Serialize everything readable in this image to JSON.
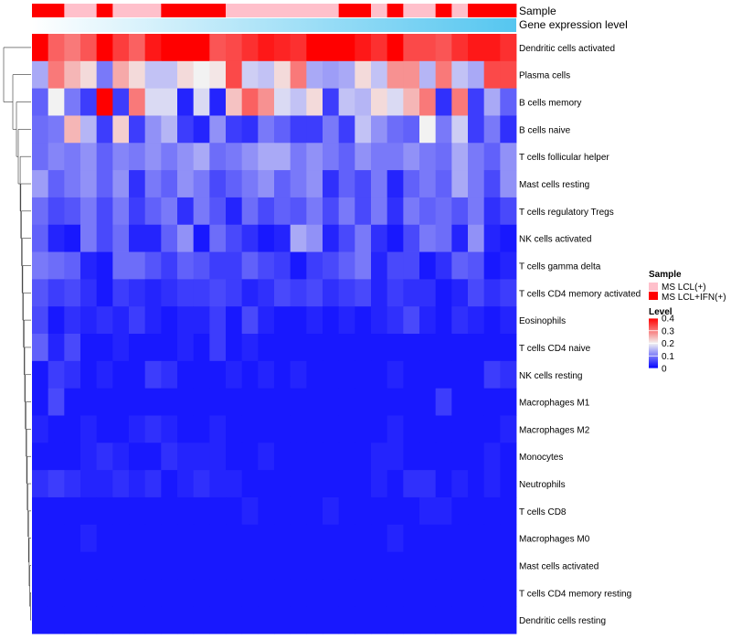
{
  "chart_data": {
    "type": "heatmap",
    "annotation_tracks": [
      "Sample",
      "Gene expression level"
    ],
    "n_samples": 30,
    "sample_groups": [
      "IFN",
      "IFN",
      "LCL",
      "LCL",
      "IFN",
      "LCL",
      "LCL",
      "LCL",
      "IFN",
      "IFN",
      "IFN",
      "IFN",
      "LCL",
      "LCL",
      "LCL",
      "LCL",
      "LCL",
      "LCL",
      "LCL",
      "IFN",
      "IFN",
      "LCL",
      "IFN",
      "LCL",
      "LCL",
      "IFN",
      "LCL",
      "IFN",
      "IFN",
      "IFN"
    ],
    "row_labels": [
      "Dendritic cells activated",
      "Plasma cells",
      "B cells memory",
      "B cells naive",
      "T cells follicular helper",
      "Mast cells resting",
      "T cells regulatory  Tregs",
      "NK cells activated",
      "T cells gamma delta",
      "T cells CD4 memory activated",
      "Eosinophils",
      "T cells CD4 naive",
      "NK cells resting",
      "Macrophages M1",
      "Macrophages M2",
      "Monocytes",
      "Neutrophils",
      "T cells CD8",
      "Macrophages M0",
      "Mast cells activated",
      "T cells CD4 memory resting",
      "Dendritic cells resting"
    ],
    "values": [
      [
        0.4,
        0.32,
        0.3,
        0.33,
        0.4,
        0.35,
        0.32,
        0.38,
        0.4,
        0.4,
        0.4,
        0.33,
        0.34,
        0.36,
        0.38,
        0.37,
        0.36,
        0.4,
        0.4,
        0.4,
        0.38,
        0.36,
        0.4,
        0.34,
        0.34,
        0.33,
        0.36,
        0.38,
        0.38,
        0.36
      ],
      [
        0.14,
        0.3,
        0.25,
        0.22,
        0.1,
        0.26,
        0.22,
        0.16,
        0.16,
        0.22,
        0.2,
        0.21,
        0.34,
        0.17,
        0.16,
        0.22,
        0.3,
        0.14,
        0.13,
        0.14,
        0.22,
        0.16,
        0.28,
        0.28,
        0.15,
        0.3,
        0.16,
        0.14,
        0.34,
        0.34
      ],
      [
        0.08,
        0.2,
        0.1,
        0.05,
        0.4,
        0.05,
        0.3,
        0.18,
        0.18,
        0.03,
        0.18,
        0.03,
        0.24,
        0.32,
        0.28,
        0.18,
        0.16,
        0.22,
        0.05,
        0.16,
        0.15,
        0.22,
        0.18,
        0.25,
        0.3,
        0.04,
        0.3,
        0.05,
        0.14,
        0.08
      ],
      [
        0.09,
        0.1,
        0.25,
        0.15,
        0.05,
        0.23,
        0.05,
        0.12,
        0.15,
        0.05,
        0.03,
        0.12,
        0.05,
        0.04,
        0.1,
        0.08,
        0.05,
        0.05,
        0.1,
        0.05,
        0.16,
        0.12,
        0.09,
        0.08,
        0.2,
        0.1,
        0.17,
        0.05,
        0.1,
        0.04
      ],
      [
        0.09,
        0.11,
        0.1,
        0.12,
        0.08,
        0.11,
        0.1,
        0.12,
        0.1,
        0.12,
        0.14,
        0.09,
        0.1,
        0.12,
        0.14,
        0.14,
        0.1,
        0.12,
        0.1,
        0.08,
        0.12,
        0.1,
        0.1,
        0.12,
        0.1,
        0.09,
        0.14,
        0.1,
        0.08,
        0.12
      ],
      [
        0.13,
        0.08,
        0.1,
        0.12,
        0.08,
        0.12,
        0.04,
        0.1,
        0.08,
        0.12,
        0.1,
        0.06,
        0.08,
        0.1,
        0.12,
        0.08,
        0.1,
        0.12,
        0.04,
        0.08,
        0.06,
        0.1,
        0.03,
        0.08,
        0.1,
        0.08,
        0.14,
        0.1,
        0.06,
        0.12
      ],
      [
        0.09,
        0.06,
        0.07,
        0.1,
        0.06,
        0.1,
        0.05,
        0.08,
        0.1,
        0.04,
        0.1,
        0.07,
        0.03,
        0.09,
        0.06,
        0.08,
        0.07,
        0.1,
        0.06,
        0.1,
        0.06,
        0.1,
        0.04,
        0.1,
        0.08,
        0.09,
        0.07,
        0.1,
        0.04,
        0.06
      ],
      [
        0.08,
        0.03,
        0.02,
        0.1,
        0.06,
        0.09,
        0.03,
        0.03,
        0.08,
        0.12,
        0.02,
        0.09,
        0.06,
        0.04,
        0.02,
        0.03,
        0.14,
        0.12,
        0.03,
        0.06,
        0.1,
        0.04,
        0.02,
        0.06,
        0.1,
        0.09,
        0.03,
        0.12,
        0.03,
        0.02
      ],
      [
        0.1,
        0.09,
        0.08,
        0.03,
        0.02,
        0.09,
        0.09,
        0.07,
        0.05,
        0.08,
        0.07,
        0.05,
        0.05,
        0.08,
        0.06,
        0.05,
        0.02,
        0.05,
        0.06,
        0.08,
        0.1,
        0.03,
        0.06,
        0.06,
        0.02,
        0.04,
        0.08,
        0.07,
        0.02,
        0.03
      ],
      [
        0.07,
        0.05,
        0.06,
        0.04,
        0.02,
        0.05,
        0.04,
        0.03,
        0.04,
        0.05,
        0.05,
        0.06,
        0.05,
        0.03,
        0.04,
        0.06,
        0.05,
        0.06,
        0.04,
        0.05,
        0.06,
        0.03,
        0.05,
        0.04,
        0.04,
        0.02,
        0.03,
        0.06,
        0.04,
        0.05
      ],
      [
        0.06,
        0.02,
        0.04,
        0.03,
        0.04,
        0.03,
        0.05,
        0.03,
        0.02,
        0.03,
        0.03,
        0.05,
        0.02,
        0.06,
        0.03,
        0.02,
        0.02,
        0.03,
        0.02,
        0.03,
        0.02,
        0.03,
        0.04,
        0.06,
        0.03,
        0.02,
        0.04,
        0.03,
        0.02,
        0.03
      ],
      [
        0.08,
        0.03,
        0.06,
        0.02,
        0.02,
        0.03,
        0.02,
        0.02,
        0.02,
        0.03,
        0.02,
        0.05,
        0.02,
        0.03,
        0.02,
        0.02,
        0.02,
        0.02,
        0.02,
        0.02,
        0.02,
        0.02,
        0.02,
        0.02,
        0.02,
        0.02,
        0.02,
        0.02,
        0.02,
        0.02
      ],
      [
        0.02,
        0.05,
        0.04,
        0.02,
        0.03,
        0.02,
        0.02,
        0.05,
        0.04,
        0.02,
        0.02,
        0.02,
        0.03,
        0.02,
        0.03,
        0.02,
        0.03,
        0.02,
        0.02,
        0.02,
        0.02,
        0.02,
        0.03,
        0.02,
        0.02,
        0.02,
        0.02,
        0.02,
        0.05,
        0.04
      ],
      [
        0.02,
        0.06,
        0.02,
        0.02,
        0.02,
        0.02,
        0.02,
        0.02,
        0.02,
        0.02,
        0.02,
        0.02,
        0.02,
        0.02,
        0.02,
        0.02,
        0.02,
        0.02,
        0.02,
        0.02,
        0.02,
        0.02,
        0.02,
        0.02,
        0.02,
        0.05,
        0.02,
        0.02,
        0.02,
        0.02
      ],
      [
        0.03,
        0.02,
        0.02,
        0.03,
        0.02,
        0.02,
        0.03,
        0.04,
        0.03,
        0.02,
        0.02,
        0.03,
        0.02,
        0.02,
        0.02,
        0.02,
        0.02,
        0.02,
        0.02,
        0.02,
        0.02,
        0.02,
        0.03,
        0.02,
        0.02,
        0.02,
        0.02,
        0.02,
        0.02,
        0.03
      ],
      [
        0.02,
        0.02,
        0.02,
        0.03,
        0.04,
        0.03,
        0.02,
        0.02,
        0.04,
        0.03,
        0.03,
        0.03,
        0.02,
        0.02,
        0.03,
        0.02,
        0.02,
        0.02,
        0.02,
        0.02,
        0.02,
        0.03,
        0.03,
        0.02,
        0.02,
        0.02,
        0.02,
        0.02,
        0.03,
        0.02
      ],
      [
        0.04,
        0.05,
        0.04,
        0.03,
        0.03,
        0.04,
        0.03,
        0.04,
        0.02,
        0.03,
        0.04,
        0.03,
        0.03,
        0.02,
        0.02,
        0.02,
        0.02,
        0.02,
        0.02,
        0.02,
        0.02,
        0.03,
        0.02,
        0.04,
        0.04,
        0.02,
        0.03,
        0.02,
        0.03,
        0.02
      ],
      [
        0.02,
        0.02,
        0.02,
        0.02,
        0.02,
        0.02,
        0.02,
        0.02,
        0.02,
        0.02,
        0.02,
        0.02,
        0.02,
        0.03,
        0.02,
        0.02,
        0.02,
        0.02,
        0.03,
        0.02,
        0.02,
        0.02,
        0.02,
        0.02,
        0.03,
        0.03,
        0.02,
        0.02,
        0.02,
        0.02
      ],
      [
        0.02,
        0.02,
        0.02,
        0.03,
        0.02,
        0.02,
        0.02,
        0.02,
        0.02,
        0.02,
        0.02,
        0.02,
        0.02,
        0.02,
        0.02,
        0.02,
        0.02,
        0.02,
        0.02,
        0.02,
        0.02,
        0.02,
        0.03,
        0.02,
        0.02,
        0.02,
        0.02,
        0.02,
        0.02,
        0.02
      ],
      [
        0.02,
        0.02,
        0.02,
        0.02,
        0.02,
        0.02,
        0.02,
        0.02,
        0.02,
        0.02,
        0.02,
        0.02,
        0.02,
        0.02,
        0.02,
        0.02,
        0.02,
        0.02,
        0.02,
        0.02,
        0.02,
        0.02,
        0.02,
        0.02,
        0.02,
        0.02,
        0.02,
        0.02,
        0.02,
        0.02
      ],
      [
        0.02,
        0.02,
        0.02,
        0.02,
        0.02,
        0.02,
        0.02,
        0.02,
        0.02,
        0.02,
        0.02,
        0.02,
        0.02,
        0.02,
        0.02,
        0.02,
        0.02,
        0.02,
        0.02,
        0.02,
        0.02,
        0.02,
        0.02,
        0.02,
        0.02,
        0.02,
        0.02,
        0.02,
        0.02,
        0.02
      ],
      [
        0.02,
        0.02,
        0.02,
        0.02,
        0.02,
        0.02,
        0.02,
        0.02,
        0.02,
        0.02,
        0.02,
        0.02,
        0.02,
        0.02,
        0.02,
        0.02,
        0.02,
        0.02,
        0.02,
        0.02,
        0.02,
        0.02,
        0.02,
        0.02,
        0.02,
        0.02,
        0.02,
        0.02,
        0.02,
        0.02
      ]
    ],
    "dendrogram": "rows",
    "legend": {
      "sample": {
        "title": "Sample",
        "entries": [
          {
            "key": "LCL",
            "label": "MS LCL(+)",
            "color": "#ffc0cb"
          },
          {
            "key": "IFN",
            "label": "MS LCL+IFN(+)",
            "color": "#ff0000"
          }
        ]
      },
      "level": {
        "title": "Level",
        "ticks": [
          "0.4",
          "0.3",
          "0.2",
          "0.1",
          "0"
        ],
        "tick_values": [
          0.4,
          0.3,
          0.2,
          0.1,
          0.0
        ],
        "range": [
          0,
          0.4
        ]
      },
      "placement": "right"
    },
    "colors": {
      "low": "#0000ff",
      "mid": "#f2f2f2",
      "high": "#ff0000",
      "expression_track_left": "#ffffff",
      "expression_track_right": "#55c6f0"
    }
  }
}
